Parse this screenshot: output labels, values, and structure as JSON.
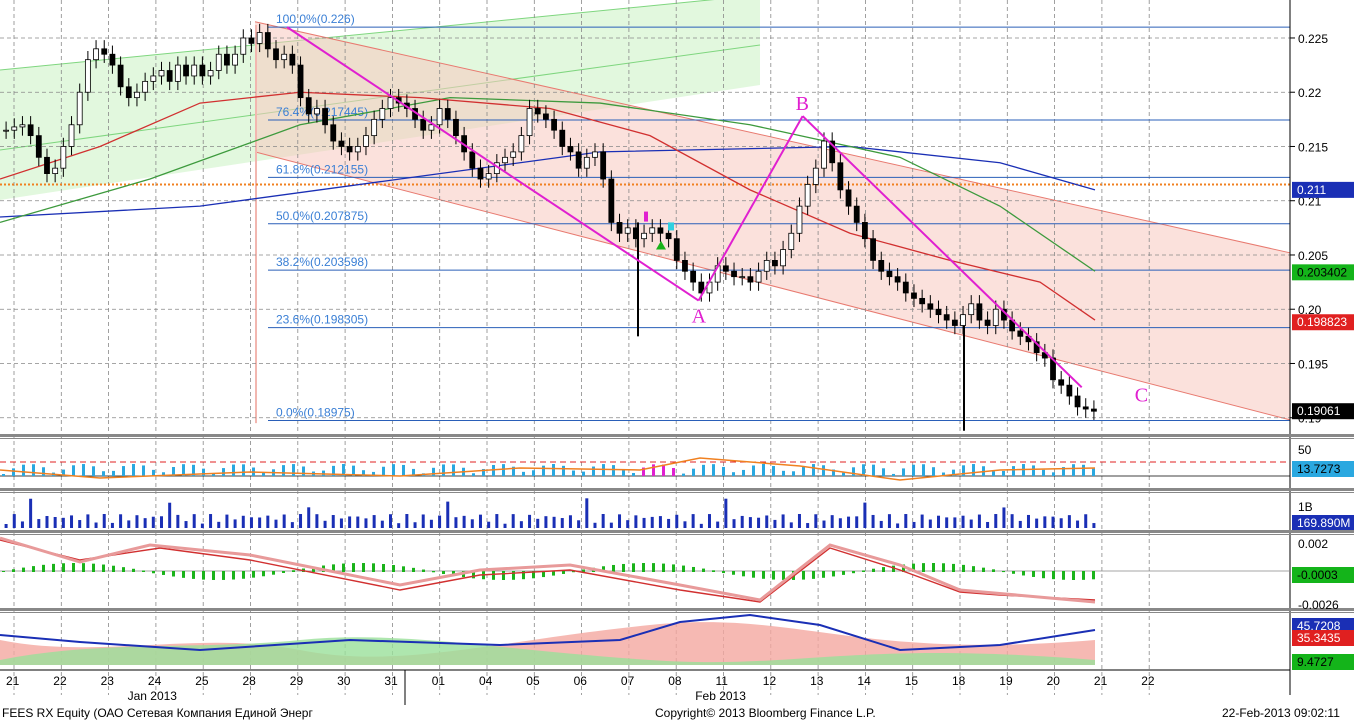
{
  "footer": {
    "security": "FEES RX Equity (ОАО Сетевая Компания Единой Энерг",
    "copyright": "Copyright© 2013 Bloomberg Finance L.P.",
    "timestamp": "22-Feb-2013 09:02:11"
  },
  "colors": {
    "fib_line": "#2a5fb8",
    "fib_text": "#3a7fd5",
    "pattern": "#e020d0",
    "ma_blue": "#1a2fb5",
    "ma_green": "#3d9a3d",
    "ma_red": "#d13030",
    "orange": "#f08020",
    "channel_fill": "#f8c8c0",
    "up_channel_fill": "#d6f5d0"
  },
  "chart_data": {
    "type": "candlestick",
    "ylim": [
      0.1885,
      0.2285
    ],
    "y_ticks": [
      "0.225",
      "0.22",
      "0.215",
      "0.21",
      "0.205",
      "0.20",
      "0.195",
      "0.19"
    ],
    "x_labels": [
      "21",
      "22",
      "23",
      "24",
      "25",
      "28",
      "29",
      "30",
      "31",
      "01",
      "04",
      "05",
      "06",
      "07",
      "08",
      "11",
      "12",
      "13",
      "14",
      "15",
      "18",
      "19",
      "20",
      "21",
      "22"
    ],
    "month_labels": [
      {
        "label": "Jan 2013",
        "after_index": 2
      },
      {
        "label": "Feb 2013",
        "after_index": 14
      }
    ],
    "fib_levels": [
      {
        "label": "100.0%(0.226)",
        "value": 0.226
      },
      {
        "label": "76.4%(0.217445)",
        "value": 0.217445
      },
      {
        "label": "61.8%(0.212155)",
        "value": 0.212155
      },
      {
        "label": "50.0%(0.207875)",
        "value": 0.207875
      },
      {
        "label": "38.2%(0.203598)",
        "value": 0.203598
      },
      {
        "label": "23.6%(0.198305)",
        "value": 0.198305
      },
      {
        "label": "0.0%(0.18975)",
        "value": 0.18975
      }
    ],
    "pattern_points": [
      {
        "label": "",
        "x": 5.9,
        "y": 0.226
      },
      {
        "label": "A",
        "x": 14.6,
        "y": 0.2008
      },
      {
        "label": "B",
        "x": 16.8,
        "y": 0.2178
      },
      {
        "label": "C",
        "x": 22.7,
        "y": 0.1928
      }
    ],
    "price_tags": [
      {
        "value": "0.211",
        "bg": "#1a2fb5",
        "color": "#ffffff"
      },
      {
        "value": "0.203402",
        "bg": "#14b41a",
        "color": "#000000"
      },
      {
        "value": "0.198823",
        "bg": "#e02020",
        "color": "#ffffff"
      },
      {
        "value": "0.19061",
        "bg": "#000000",
        "color": "#ffffff"
      }
    ],
    "closes": [
      0.2165,
      0.2168,
      0.217,
      0.216,
      0.214,
      0.2125,
      0.213,
      0.215,
      0.217,
      0.22,
      0.223,
      0.224,
      0.2235,
      0.2225,
      0.2205,
      0.2195,
      0.22,
      0.221,
      0.2215,
      0.222,
      0.221,
      0.2225,
      0.2215,
      0.2225,
      0.2215,
      0.222,
      0.2235,
      0.2225,
      0.2235,
      0.225,
      0.2245,
      0.2255,
      0.224,
      0.223,
      0.2235,
      0.2225,
      0.2195,
      0.218,
      0.2185,
      0.217,
      0.2155,
      0.215,
      0.2145,
      0.215,
      0.216,
      0.2175,
      0.2185,
      0.2195,
      0.219,
      0.2185,
      0.2175,
      0.2165,
      0.217,
      0.2185,
      0.2175,
      0.216,
      0.2145,
      0.213,
      0.212,
      0.2125,
      0.2135,
      0.214,
      0.2145,
      0.216,
      0.2185,
      0.218,
      0.2175,
      0.2165,
      0.215,
      0.2145,
      0.213,
      0.214,
      0.2145,
      0.212,
      0.208,
      0.207,
      0.2075,
      0.2065,
      0.207,
      0.2075,
      0.207,
      0.2065,
      0.2045,
      0.2035,
      0.2025,
      0.2015,
      0.2025,
      0.204,
      0.2035,
      0.203,
      0.203,
      0.2025,
      0.2035,
      0.2045,
      0.204,
      0.2055,
      0.207,
      0.2095,
      0.2115,
      0.213,
      0.2155,
      0.2135,
      0.211,
      0.2095,
      0.208,
      0.2065,
      0.2045,
      0.2035,
      0.203,
      0.2025,
      0.2015,
      0.201,
      0.2005,
      0.2,
      0.1995,
      0.199,
      0.1985,
      0.1995,
      0.2005,
      0.199,
      0.1985,
      0.2,
      0.199,
      0.198,
      0.1975,
      0.197,
      0.196,
      0.1955,
      0.1935,
      0.193,
      0.192,
      0.191,
      0.1908,
      0.1906
    ],
    "rsi": {
      "ylim": [
        0,
        60
      ],
      "ticks": [
        "50"
      ],
      "tag": "13.7273",
      "ref": 35
    },
    "volume": {
      "ticks": [
        "1B"
      ],
      "tag": "169.890M"
    },
    "macd": {
      "ticks": [
        "0.002",
        "-0.0003",
        "-0.0026"
      ],
      "tag": "-0.0003"
    },
    "dmi": {
      "tags": [
        {
          "value": "45.7208",
          "bg": "#1a2fb5"
        },
        {
          "value": "35.3435",
          "bg": "#e02020"
        },
        {
          "value": "9.4727",
          "bg": "#14b41a"
        }
      ]
    }
  }
}
